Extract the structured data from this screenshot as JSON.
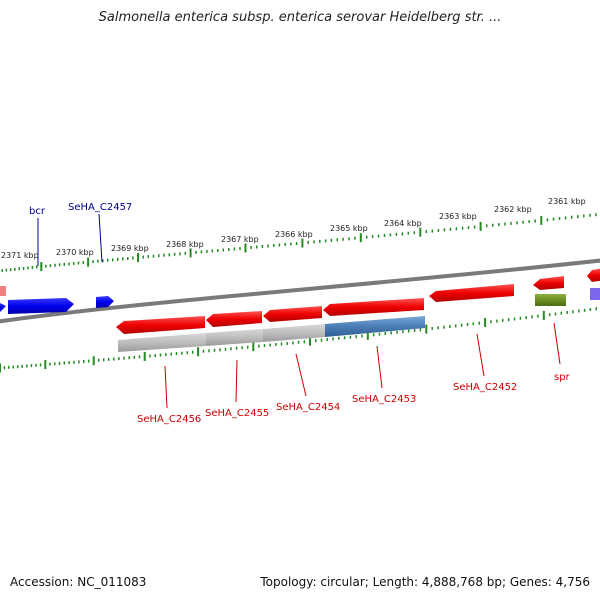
{
  "title": "Salmonella enterica subsp. enterica serovar Heidelberg str. ...",
  "footer": {
    "accession": "Accession: NC_011083",
    "summary": "Topology: circular; Length: 4,888,768 bp; Genes: 4,756"
  },
  "scale_labels": [
    "2371 kbp",
    "2370 kbp",
    "2369 kbp",
    "2368 kbp",
    "2367 kbp",
    "2366 kbp",
    "2365 kbp",
    "2364 kbp",
    "2363 kbp",
    "2362 kbp",
    "2361 kbp"
  ],
  "gene_labels": {
    "bcr": "bcr",
    "seha_c2457": "SeHA_C2457",
    "seha_c2456": "SeHA_C2456",
    "seha_c2455": "SeHA_C2455",
    "seha_c2454": "SeHA_C2454",
    "seha_c2453": "SeHA_C2453",
    "seha_c2452": "SeHA_C2452",
    "spr": "spr"
  },
  "colors": {
    "forward_gene": "#0000ee",
    "reverse_gene": "#ee0000",
    "highlight_gene": "#4a7db5",
    "spr_gene": "#6b8e23",
    "purple_gene": "#7b68ee",
    "backbone": "#808080",
    "ticks": "#228b22",
    "reverse_label": "#cc0000",
    "forward_label": "#00008b"
  }
}
